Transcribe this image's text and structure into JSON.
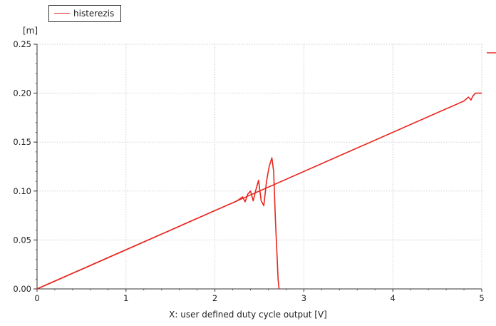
{
  "legend": {
    "label": "histerezis"
  },
  "colors": {
    "series": "#e8271f",
    "grid": "#d0d0d0",
    "axis": "#333333"
  },
  "chart_data": {
    "type": "line",
    "title": "",
    "xlabel": "X: user defined duty cycle output [V]",
    "ylabel": "[m]",
    "xlim": [
      0,
      5
    ],
    "ylim": [
      0,
      0.25
    ],
    "x_ticks": [
      "0",
      "1",
      "2",
      "3",
      "4",
      "5"
    ],
    "y_ticks": [
      "0.00",
      "0.05",
      "0.10",
      "0.15",
      "0.20",
      "0.25"
    ],
    "grid": true,
    "legend_position": "top-left",
    "series": [
      {
        "name": "histerezis",
        "color": "#e8271f",
        "x": [
          0,
          0.05,
          0.1,
          0.3,
          0.6,
          1.0,
          1.4,
          1.8,
          2.0,
          2.1,
          2.2,
          2.25,
          2.28,
          2.31,
          2.34,
          2.37,
          2.4,
          2.43,
          2.46,
          2.49,
          2.52,
          2.55,
          2.58,
          2.61,
          2.64,
          2.66,
          2.68,
          2.7,
          2.71,
          2.72
        ],
        "y": [
          0.0,
          0.002,
          0.004,
          0.012,
          0.024,
          0.04,
          0.056,
          0.072,
          0.08,
          0.084,
          0.088,
          0.09,
          0.092,
          0.094,
          0.089,
          0.097,
          0.1,
          0.09,
          0.101,
          0.111,
          0.09,
          0.085,
          0.11,
          0.125,
          0.134,
          0.12,
          0.07,
          0.03,
          0.01,
          0.0
        ]
      },
      {
        "name": "histerezis",
        "color": "#e8271f",
        "x": [
          0,
          0.5,
          1.0,
          1.5,
          2.0,
          2.5,
          3.0,
          3.5,
          4.0,
          4.5,
          4.7,
          4.75,
          4.8,
          4.85,
          4.88,
          4.9,
          4.93,
          4.96,
          5.0
        ],
        "y": [
          0.0,
          0.02,
          0.04,
          0.06,
          0.08,
          0.1,
          0.12,
          0.14,
          0.16,
          0.18,
          0.188,
          0.19,
          0.192,
          0.196,
          0.193,
          0.197,
          0.2,
          0.2,
          0.2
        ]
      }
    ]
  }
}
